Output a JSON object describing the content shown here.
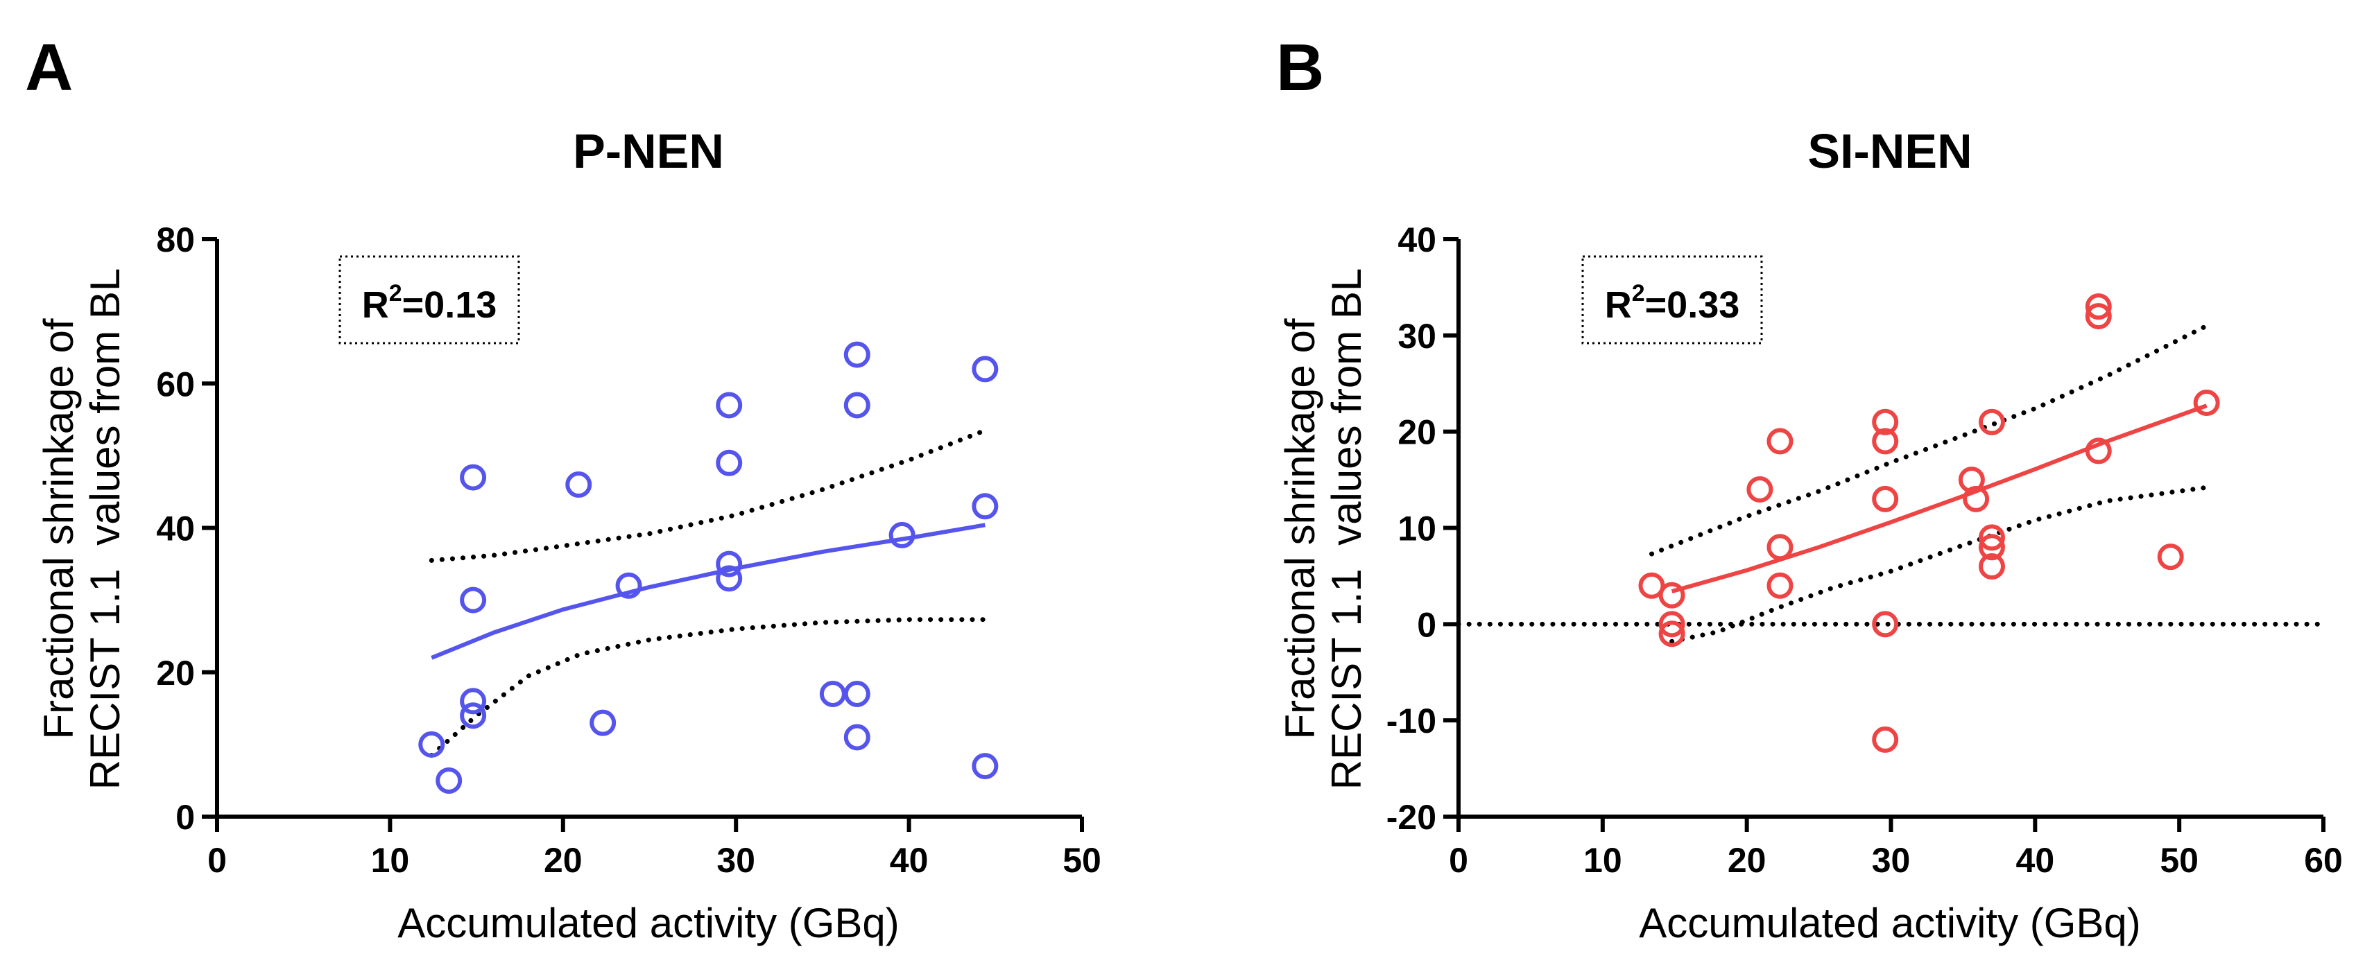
{
  "chart_data": [
    {
      "panel": "A",
      "type": "scatter",
      "title": "P-NEN",
      "xlabel": "Accumulated activity (GBq)",
      "ylabel_lines": [
        "Fractional shrinkage of",
        "RECIST 1.1  values from BL"
      ],
      "xlim": [
        0,
        50
      ],
      "ylim": [
        0,
        80
      ],
      "xticks": [
        0,
        10,
        20,
        30,
        40,
        50
      ],
      "yticks": [
        0,
        20,
        40,
        60,
        80
      ],
      "color": "#5555ee",
      "annotation": {
        "prefix": "R",
        "sup": "2",
        "suffix": "=0.13"
      },
      "reference_line": null,
      "points": [
        {
          "x": 12.4,
          "y": 10
        },
        {
          "x": 13.4,
          "y": 5
        },
        {
          "x": 14.8,
          "y": 47
        },
        {
          "x": 14.8,
          "y": 30
        },
        {
          "x": 14.8,
          "y": 16
        },
        {
          "x": 14.8,
          "y": 14
        },
        {
          "x": 20.9,
          "y": 46
        },
        {
          "x": 22.3,
          "y": 13
        },
        {
          "x": 23.8,
          "y": 32
        },
        {
          "x": 29.6,
          "y": 57
        },
        {
          "x": 29.6,
          "y": 49
        },
        {
          "x": 29.6,
          "y": 35
        },
        {
          "x": 29.6,
          "y": 33
        },
        {
          "x": 35.6,
          "y": 17
        },
        {
          "x": 37.0,
          "y": 64
        },
        {
          "x": 37.0,
          "y": 57
        },
        {
          "x": 37.0,
          "y": 17
        },
        {
          "x": 37.0,
          "y": 11
        },
        {
          "x": 39.6,
          "y": 39
        },
        {
          "x": 44.4,
          "y": 62
        },
        {
          "x": 44.4,
          "y": 43
        },
        {
          "x": 44.4,
          "y": 7
        }
      ],
      "fit_line": [
        [
          12.4,
          22
        ],
        [
          16,
          25.5
        ],
        [
          20,
          28.7
        ],
        [
          25,
          31.8
        ],
        [
          30,
          34.4
        ],
        [
          35,
          36.7
        ],
        [
          40,
          38.6
        ],
        [
          44.4,
          40.4
        ]
      ],
      "ci_upper": [
        [
          12.4,
          35.5
        ],
        [
          16,
          36.2
        ],
        [
          20,
          37.5
        ],
        [
          25,
          39.2
        ],
        [
          30,
          41.8
        ],
        [
          35,
          45.3
        ],
        [
          40,
          49.4
        ],
        [
          44.4,
          53.5
        ]
      ],
      "ci_lower": [
        [
          12.4,
          8.5
        ],
        [
          15,
          14
        ],
        [
          18,
          19.5
        ],
        [
          21,
          22.5
        ],
        [
          25,
          24.5
        ],
        [
          30,
          26
        ],
        [
          35,
          26.9
        ],
        [
          40,
          27.3
        ],
        [
          44.4,
          27.3
        ]
      ]
    },
    {
      "panel": "B",
      "type": "scatter",
      "title": "SI-NEN",
      "xlabel": "Accumulated activity (GBq)",
      "ylabel_lines": [
        "Fractional shrinkage of",
        "RECIST 1.1  values from BL"
      ],
      "xlim": [
        0,
        60
      ],
      "ylim": [
        -20,
        40
      ],
      "xticks": [
        0,
        10,
        20,
        30,
        40,
        50,
        60
      ],
      "yticks": [
        -20,
        -10,
        0,
        10,
        20,
        30,
        40
      ],
      "color": "#ee4444",
      "annotation": {
        "prefix": "R",
        "sup": "2",
        "suffix": "=0.33"
      },
      "reference_line": 0,
      "points": [
        {
          "x": 13.4,
          "y": 4
        },
        {
          "x": 14.8,
          "y": 3
        },
        {
          "x": 14.8,
          "y": 0
        },
        {
          "x": 14.8,
          "y": -1
        },
        {
          "x": 20.9,
          "y": 14
        },
        {
          "x": 22.3,
          "y": 19
        },
        {
          "x": 22.3,
          "y": 8
        },
        {
          "x": 22.3,
          "y": 4
        },
        {
          "x": 29.6,
          "y": 21
        },
        {
          "x": 29.6,
          "y": 19
        },
        {
          "x": 29.6,
          "y": 13
        },
        {
          "x": 29.6,
          "y": 0
        },
        {
          "x": 29.6,
          "y": -12
        },
        {
          "x": 35.6,
          "y": 15
        },
        {
          "x": 35.9,
          "y": 13
        },
        {
          "x": 37.0,
          "y": 21
        },
        {
          "x": 37.0,
          "y": 9
        },
        {
          "x": 37.0,
          "y": 8
        },
        {
          "x": 37.0,
          "y": 6
        },
        {
          "x": 44.4,
          "y": 33
        },
        {
          "x": 44.4,
          "y": 32
        },
        {
          "x": 44.4,
          "y": 18
        },
        {
          "x": 49.4,
          "y": 7
        },
        {
          "x": 51.9,
          "y": 23
        }
      ],
      "fit_line": [
        [
          14.8,
          3.4
        ],
        [
          20,
          5.6
        ],
        [
          25,
          8.0
        ],
        [
          30,
          10.6
        ],
        [
          35,
          13.3
        ],
        [
          40,
          16.1
        ],
        [
          45,
          19.0
        ],
        [
          51.9,
          22.7
        ]
      ],
      "ci_upper": [
        [
          13.4,
          7.3
        ],
        [
          20,
          11.2
        ],
        [
          25,
          13.8
        ],
        [
          30,
          16.8
        ],
        [
          35,
          19.6
        ],
        [
          40,
          22.4
        ],
        [
          45,
          25.8
        ],
        [
          51.9,
          31.0
        ]
      ],
      "ci_lower": [
        [
          14.8,
          -1.8
        ],
        [
          18,
          -0.8
        ],
        [
          22,
          1.6
        ],
        [
          26,
          3.8
        ],
        [
          30,
          5.5
        ],
        [
          35,
          8.2
        ],
        [
          40,
          10.8
        ],
        [
          45,
          12.8
        ],
        [
          51.9,
          14.2
        ]
      ]
    }
  ]
}
